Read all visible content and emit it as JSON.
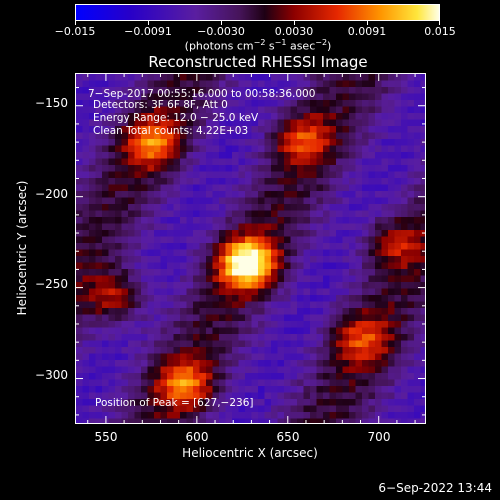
{
  "colorbar": {
    "tick_labels": [
      "−0.015",
      "−0.0091",
      "−0.0030",
      "0.0030",
      "0.0091",
      "0.015"
    ],
    "tick_values": [
      -0.015,
      -0.0091,
      -0.003,
      0.003,
      0.0091,
      0.015
    ],
    "range": [
      -0.015,
      0.015
    ],
    "unit_prefix": "(photons cm",
    "unit_exp1": "−2",
    "unit_mid": " s",
    "unit_exp2": "−1",
    "unit_mid2": " asec",
    "unit_exp3": "−2",
    "unit_suffix": ")"
  },
  "chart_data": {
    "type": "heatmap",
    "title": "Reconstructed RHESSI Image",
    "xlabel": "Heliocentric X (arcsec)",
    "ylabel": "Heliocentric Y (arcsec)",
    "xlim": [
      533,
      726
    ],
    "ylim": [
      -325,
      -132
    ],
    "x_ticks": [
      550,
      600,
      650,
      700
    ],
    "y_ticks": [
      -150,
      -200,
      -250,
      -300
    ],
    "peak": [
      627,
      -236
    ],
    "annotations": {
      "time": "7-Sep-2017 00:55:16.000 to 00:58:36.000",
      "detectors": "Detectors: 3F 6F 8F, Att 0",
      "energy": "Energy Range: 12.0 − 25.0 keV",
      "clean": "Clean     Total counts: 4.22E+03",
      "peak_text": "Position of Peak = [627,−236]"
    },
    "sources": [
      {
        "x": 627,
        "y": -236,
        "intensity": 1.0
      },
      {
        "x": 575,
        "y": -170,
        "intensity": 0.55
      },
      {
        "x": 657,
        "y": -168,
        "intensity": 0.45
      },
      {
        "x": 555,
        "y": -255,
        "intensity": 0.5
      },
      {
        "x": 593,
        "y": -303,
        "intensity": 0.55
      },
      {
        "x": 690,
        "y": -278,
        "intensity": 0.45
      },
      {
        "x": 707,
        "y": -225,
        "intensity": 0.4
      }
    ]
  },
  "footer": {
    "timestamp": "6-Sep-2022 13:44"
  }
}
